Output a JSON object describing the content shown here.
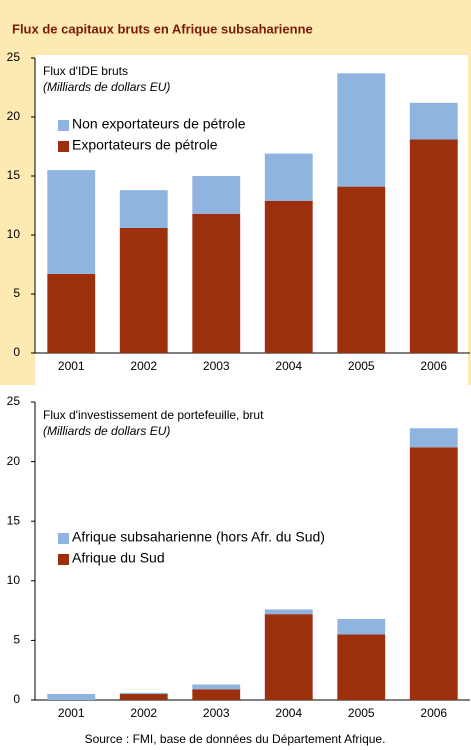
{
  "page": {
    "title": "Flux de capitaux bruts en Afrique subsaharienne",
    "source": "Source : FMI, base de données du Département Afrique."
  },
  "chart_data": [
    {
      "type": "stacked_bar",
      "title": "Flux d'IDE bruts",
      "subtitle": "(Milliards de dollars EU)",
      "categories": [
        "2001",
        "2002",
        "2003",
        "2004",
        "2005",
        "2006"
      ],
      "series": [
        {
          "name": "Exportateurs de pétrole",
          "color": "#9c2f0c",
          "values": [
            6.7,
            10.6,
            11.8,
            12.9,
            14.1,
            18.1
          ]
        },
        {
          "name": "Non exportateurs de pétrole",
          "color": "#8fb4e0",
          "values": [
            8.8,
            3.2,
            3.2,
            4.0,
            9.6,
            3.1
          ]
        }
      ],
      "ylim": [
        0,
        25
      ],
      "yticks": [
        0,
        5,
        10,
        15,
        20,
        25
      ],
      "grid": false
    },
    {
      "type": "stacked_bar",
      "title": "Flux d'investissement de portefeuille, brut",
      "subtitle": "(Milliards de dollars EU)",
      "categories": [
        "2001",
        "2002",
        "2003",
        "2004",
        "2005",
        "2006"
      ],
      "series": [
        {
          "name": "Afrique du Sud",
          "color": "#9c2f0c",
          "values": [
            0,
            0.5,
            0.9,
            7.2,
            5.5,
            21.2
          ]
        },
        {
          "name": "Afrique subsaharienne (hors Afr. du Sud)",
          "color": "#8fb4e0",
          "values": [
            0.5,
            0.1,
            0.4,
            0.4,
            1.3,
            1.6
          ]
        }
      ],
      "ylim": [
        0,
        25
      ],
      "yticks": [
        0,
        5,
        10,
        15,
        20,
        25
      ],
      "grid": false
    }
  ]
}
